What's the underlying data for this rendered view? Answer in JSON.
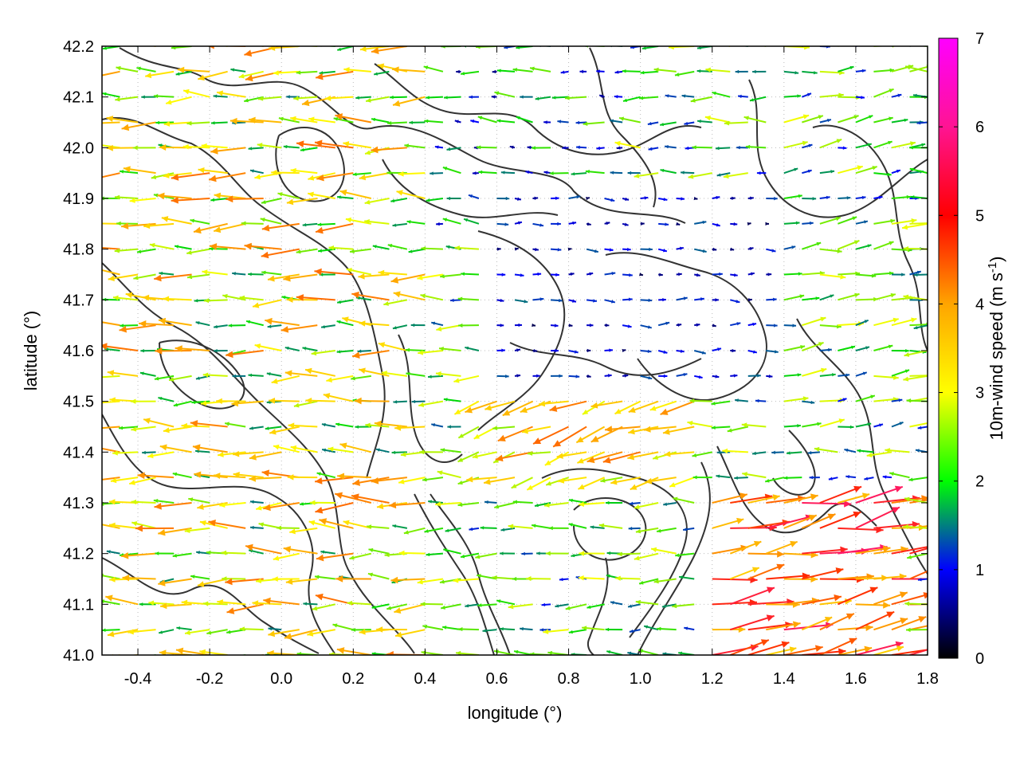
{
  "chart_data": {
    "type": "vector-field",
    "x_label": "longitude (°)",
    "y_label": "latitude (°)",
    "xlim": [
      -0.5,
      1.8
    ],
    "ylim": [
      41.0,
      42.2
    ],
    "x_ticks": [
      "-0.4",
      "-0.2",
      "0.0",
      "0.2",
      "0.4",
      "0.6",
      "0.8",
      "1.0",
      "1.2",
      "1.4",
      "1.6",
      "1.8"
    ],
    "x_tick_values": [
      -0.4,
      -0.2,
      0.0,
      0.2,
      0.4,
      0.6,
      0.8,
      1.0,
      1.2,
      1.4,
      1.6,
      1.8
    ],
    "y_ticks": [
      "41.0",
      "41.1",
      "41.2",
      "41.3",
      "41.4",
      "41.5",
      "41.6",
      "41.7",
      "41.8",
      "41.9",
      "42.0",
      "42.1",
      "42.2"
    ],
    "y_tick_values": [
      41.0,
      41.1,
      41.2,
      41.3,
      41.4,
      41.5,
      41.6,
      41.7,
      41.8,
      41.9,
      42.0,
      42.1,
      42.2
    ],
    "grid": true,
    "colorbar": {
      "label": "10m-wind speed (m s-1)",
      "label_main": "10m-wind speed (m s",
      "label_sup": "-1",
      "label_end": ")",
      "range": [
        0,
        7
      ],
      "ticks": [
        "0",
        "1",
        "2",
        "3",
        "4",
        "5",
        "6",
        "7"
      ],
      "tick_values": [
        0,
        1,
        2,
        3,
        4,
        5,
        6,
        7
      ],
      "colors": [
        "#000000",
        "#0000ff",
        "#00ff00",
        "#ffff00",
        "#ffa500",
        "#ff0000",
        "#ff00ff"
      ]
    },
    "contour_color": "#333333",
    "vectors_description": "Wind vectors every ~0.05° colored by speed; westward flow (2-3 m/s) in the west, weak flow in the center, stronger south-easterly/easterly flow (4-6 m/s) in the south-east.",
    "wind_regions": [
      {
        "x": [
          -0.5,
          0.4
        ],
        "y": [
          41.0,
          42.2
        ],
        "u": -2.4,
        "v": 0.0,
        "speed_range": [
          1.5,
          4.5
        ]
      },
      {
        "x": [
          0.4,
          1.0
        ],
        "y": [
          41.8,
          42.2
        ],
        "u": -1.2,
        "v": 0.1,
        "speed_range": [
          0.5,
          2.5
        ]
      },
      {
        "x": [
          0.6,
          1.4
        ],
        "y": [
          41.5,
          41.9
        ],
        "u": 0.6,
        "v": 0.0,
        "speed_range": [
          0.3,
          1.5
        ]
      },
      {
        "x": [
          0.5,
          1.2
        ],
        "y": [
          41.3,
          41.5
        ],
        "u": -2.5,
        "v": -0.8,
        "speed_range": [
          2.5,
          4.5
        ]
      },
      {
        "x": [
          1.2,
          1.8
        ],
        "y": [
          41.0,
          41.3
        ],
        "u": 4.5,
        "v": 0.9,
        "speed_range": [
          3.5,
          5.8
        ]
      },
      {
        "x": [
          1.4,
          1.8
        ],
        "y": [
          41.4,
          42.2
        ],
        "u": 1.5,
        "v": 0.2,
        "speed_range": [
          1.0,
          3.0
        ]
      }
    ]
  }
}
